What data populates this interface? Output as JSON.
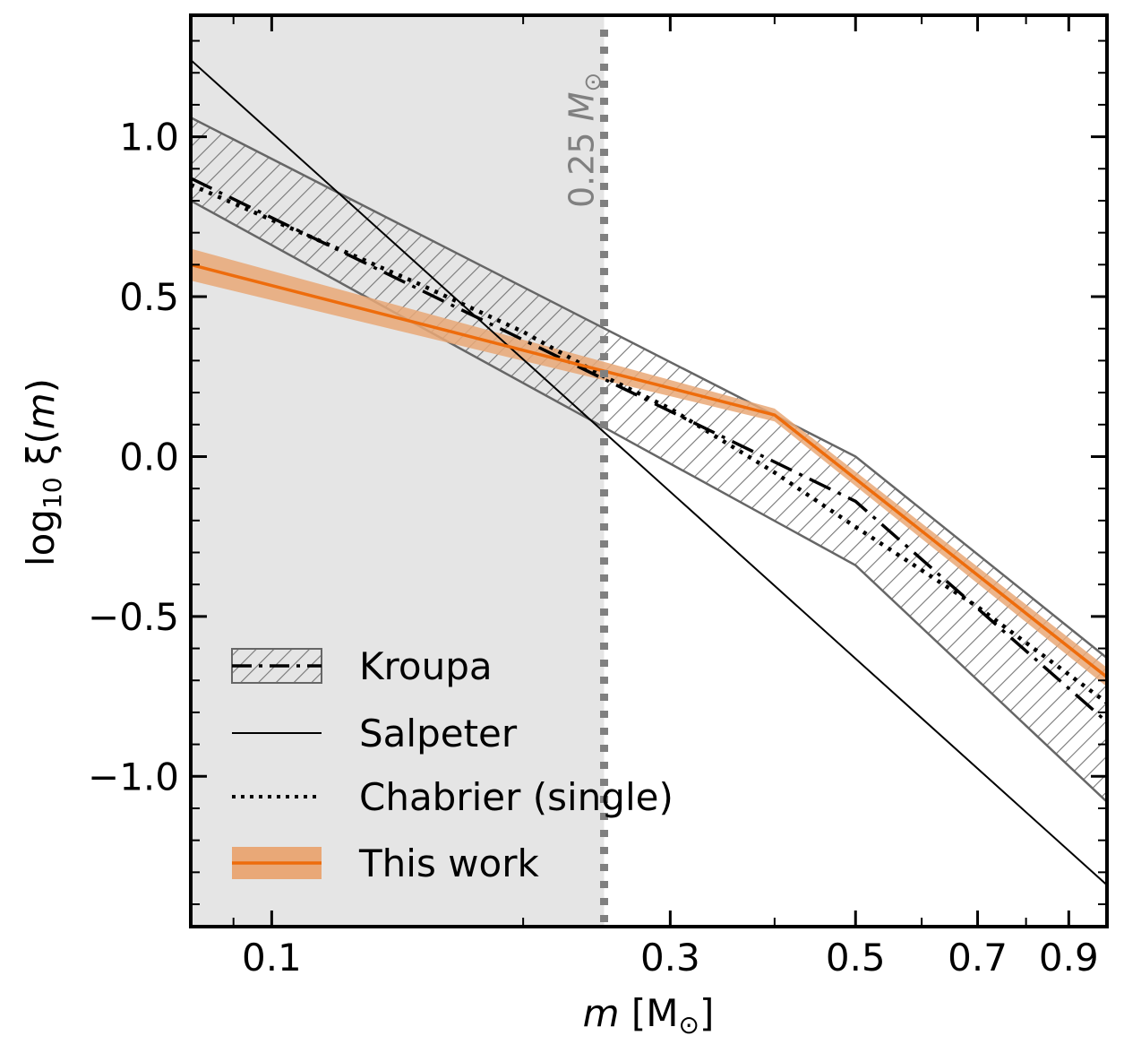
{
  "chart_data": {
    "type": "line",
    "xscale": "log",
    "xlim": [
      0.08,
      1.0
    ],
    "ylim": [
      -1.47,
      1.38
    ],
    "xlabel": {
      "italic": "m",
      "rest": " [M",
      "sub": "⊙",
      "close": "]"
    },
    "ylabel": {
      "pre": "log",
      "sub": "10",
      "greek": " ξ(",
      "italic": "m",
      "post": ")"
    },
    "xticks": [
      {
        "value": 0.1,
        "label": "0.1"
      },
      {
        "value": 0.3,
        "label": "0.3"
      },
      {
        "value": 0.5,
        "label": "0.5"
      },
      {
        "value": 0.7,
        "label": "0.7"
      },
      {
        "value": 0.9,
        "label": "0.9"
      }
    ],
    "yticks": [
      {
        "value": 1.0,
        "label": "1.0"
      },
      {
        "value": 0.5,
        "label": "0.5"
      },
      {
        "value": 0.0,
        "label": "0.0"
      },
      {
        "value": -0.5,
        "label": "−0.5"
      },
      {
        "value": -1.0,
        "label": "−1.0"
      }
    ],
    "shaded_region": {
      "x": [
        0.08,
        0.25
      ],
      "color": "#e5e5e5"
    },
    "vline": {
      "x": 0.25,
      "color": "#808080",
      "label_main": "0.25 ",
      "label_italic": "M",
      "label_sub": "⊙"
    },
    "series": [
      {
        "name": "Kroupa",
        "style": "dashdot",
        "color": "#000000",
        "x": [
          0.08,
          0.5,
          1.0
        ],
        "y": [
          0.87,
          -0.14,
          -0.83
        ],
        "band_upper": [
          1.06,
          0.0,
          -0.63
        ],
        "band_lower": [
          0.8,
          -0.34,
          -1.08
        ],
        "band_color": "#666666"
      },
      {
        "name": "Salpeter",
        "style": "solid-thin",
        "color": "#000000",
        "x": [
          0.08,
          1.0
        ],
        "y": [
          1.24,
          -1.34
        ]
      },
      {
        "name": "Chabrier (single)",
        "style": "dotted",
        "color": "#000000",
        "x": [
          0.08,
          0.1,
          0.15,
          0.2,
          0.25,
          0.3,
          0.4,
          0.5,
          0.7,
          1.0
        ],
        "y": [
          0.85,
          0.74,
          0.54,
          0.39,
          0.25,
          0.15,
          -0.05,
          -0.22,
          -0.47,
          -0.77
        ]
      },
      {
        "name": "This work",
        "style": "solid",
        "color": "#ee6c0c",
        "x": [
          0.08,
          0.4,
          1.0
        ],
        "y": [
          0.6,
          0.13,
          -0.69
        ],
        "band_upper": [
          0.65,
          0.15,
          -0.66
        ],
        "band_lower": [
          0.55,
          0.11,
          -0.72
        ],
        "band_color": "#e9a877"
      }
    ],
    "legend": {
      "position": "lower-left"
    }
  }
}
